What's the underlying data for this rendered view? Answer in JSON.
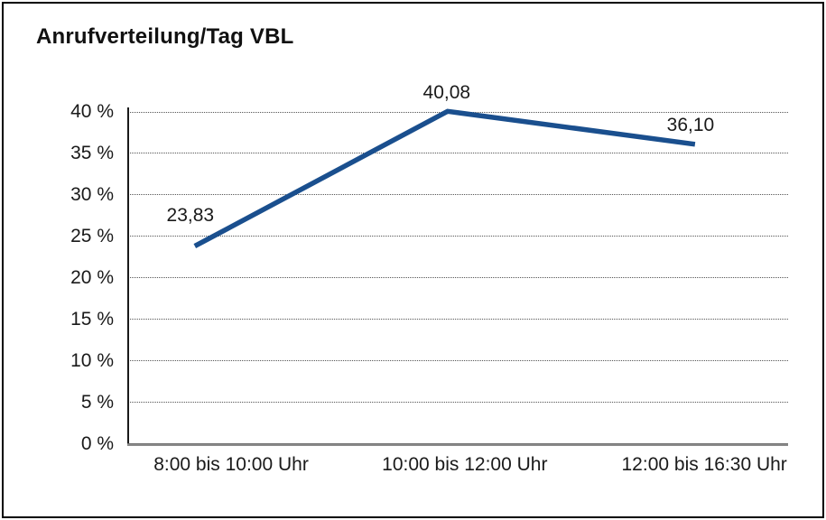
{
  "chart_data": {
    "type": "line",
    "title": "Anrufverteilung/Tag VBL",
    "categories": [
      "8:00 bis 10:00 Uhr",
      "10:00 bis 12:00 Uhr",
      "12:00 bis 16:30 Uhr"
    ],
    "values": [
      23.83,
      40.08,
      36.1
    ],
    "point_labels": [
      "23,83",
      "40,08",
      "36,10"
    ],
    "ytick_labels": [
      "0 %",
      "5 %",
      "10 %",
      "15 %",
      "20 %",
      "25 %",
      "30 %",
      "35 %",
      "40 %"
    ],
    "ylim": [
      0,
      40
    ],
    "ytick_step": 5,
    "xlabel": "",
    "ylabel": "",
    "grid": "horizontal-dotted",
    "legend": "none",
    "line_color": "#1A4F8E",
    "axis_color": "#1a1a1a",
    "baseline_color": "#8a8a8a",
    "text_color": "#1a1a1a"
  }
}
